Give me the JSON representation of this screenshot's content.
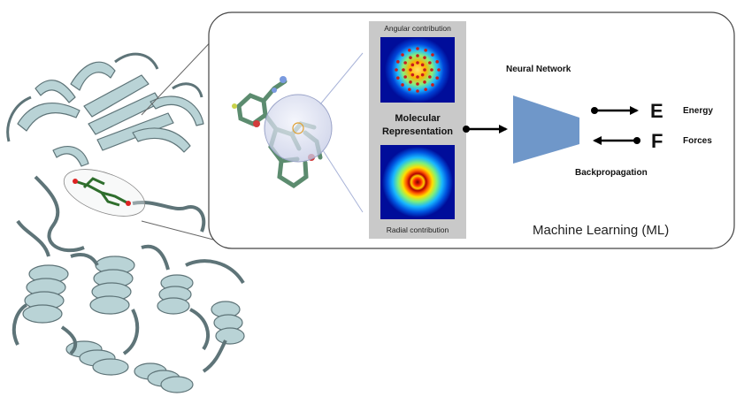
{
  "diagram": {
    "panel_top_label": "Angular contribution",
    "panel_middle_label_line1": "Molecular",
    "panel_middle_label_line2": "Representation",
    "panel_bottom_label": "Radial contribution",
    "network_label": "Neural Network",
    "energy_symbol": "E",
    "energy_label": "Energy",
    "forces_symbol": "F",
    "forces_label": "Forces",
    "backprop_label": "Backpropagation",
    "ml_label": "Machine Learning (ML)"
  },
  "colors": {
    "protein": "#b9d3d6",
    "protein_edge": "#5e7478",
    "ligand": "#3c8a3a",
    "network": "#6f97c9",
    "panel_bg": "#c9c9c9",
    "sphere": "#dfe3f3"
  }
}
